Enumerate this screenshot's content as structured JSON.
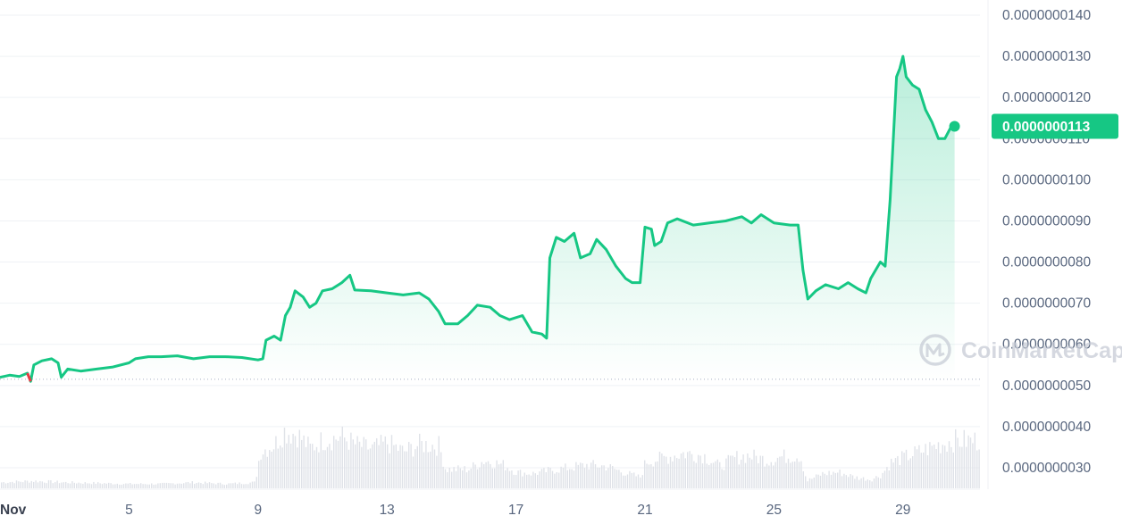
{
  "chart_data": {
    "type": "line",
    "x_axis": {
      "tick_labels": [
        "Nov",
        "5",
        "9",
        "13",
        "17",
        "21",
        "25",
        "29"
      ],
      "tick_days": [
        1,
        5,
        9,
        13,
        17,
        21,
        25,
        29
      ]
    },
    "y_axis": {
      "tick_labels": [
        "0.0000000030",
        "0.0000000040",
        "0.0000000050",
        "0.0000000060",
        "0.0000000070",
        "0.0000000080",
        "0.0000000090",
        "0.0000000100",
        "0.0000000110",
        "0.0000000120",
        "0.0000000130",
        "0.0000000140"
      ],
      "ylim": [
        2.8e-09,
        1.44e-08
      ]
    },
    "grid": "horizontal",
    "current_price_label": "0.0000000113",
    "current_price": 1.13e-08,
    "reference_line": 5.15e-09,
    "watermark": "CoinMarketCap",
    "colors": {
      "line_up": "#16c784",
      "line_down": "#ea3943",
      "volume": "#dfe2e8",
      "grid": "#eff2f5",
      "text": "#58667e"
    },
    "series": [
      {
        "values": [
          [
            1.0,
            5.2e-09
          ],
          [
            1.3,
            5.25e-09
          ],
          [
            1.6,
            5.22e-09
          ],
          [
            1.85,
            5.3e-09
          ],
          [
            1.95,
            5.1e-09
          ],
          [
            2.05,
            5.5e-09
          ],
          [
            2.3,
            5.6e-09
          ],
          [
            2.6,
            5.65e-09
          ],
          [
            2.8,
            5.55e-09
          ],
          [
            2.9,
            5.2e-09
          ],
          [
            3.1,
            5.4e-09
          ],
          [
            3.5,
            5.35e-09
          ],
          [
            4.0,
            5.4e-09
          ],
          [
            4.5,
            5.45e-09
          ],
          [
            5.0,
            5.55e-09
          ],
          [
            5.2,
            5.65e-09
          ],
          [
            5.6,
            5.7e-09
          ],
          [
            6.0,
            5.7e-09
          ],
          [
            6.5,
            5.72e-09
          ],
          [
            7.0,
            5.65e-09
          ],
          [
            7.5,
            5.7e-09
          ],
          [
            8.0,
            5.7e-09
          ],
          [
            8.5,
            5.68e-09
          ],
          [
            9.0,
            5.62e-09
          ],
          [
            9.15,
            5.65e-09
          ],
          [
            9.25,
            6.1e-09
          ],
          [
            9.5,
            6.2e-09
          ],
          [
            9.7,
            6.1e-09
          ],
          [
            9.85,
            6.7e-09
          ],
          [
            10.0,
            6.9e-09
          ],
          [
            10.15,
            7.3e-09
          ],
          [
            10.4,
            7.15e-09
          ],
          [
            10.6,
            6.9e-09
          ],
          [
            10.8,
            7e-09
          ],
          [
            11.0,
            7.3e-09
          ],
          [
            11.3,
            7.35e-09
          ],
          [
            11.6,
            7.5e-09
          ],
          [
            11.85,
            7.68e-09
          ],
          [
            12.0,
            7.32e-09
          ],
          [
            12.5,
            7.3e-09
          ],
          [
            13.0,
            7.25e-09
          ],
          [
            13.5,
            7.2e-09
          ],
          [
            14.0,
            7.25e-09
          ],
          [
            14.3,
            7.1e-09
          ],
          [
            14.6,
            6.8e-09
          ],
          [
            14.8,
            6.5e-09
          ],
          [
            15.2,
            6.5e-09
          ],
          [
            15.5,
            6.7e-09
          ],
          [
            15.8,
            6.95e-09
          ],
          [
            16.2,
            6.9e-09
          ],
          [
            16.5,
            6.7e-09
          ],
          [
            16.8,
            6.6e-09
          ],
          [
            17.2,
            6.7e-09
          ],
          [
            17.5,
            6.3e-09
          ],
          [
            17.8,
            6.25e-09
          ],
          [
            17.95,
            6.15e-09
          ],
          [
            18.05,
            8.1e-09
          ],
          [
            18.25,
            8.6e-09
          ],
          [
            18.5,
            8.5e-09
          ],
          [
            18.8,
            8.7e-09
          ],
          [
            19.0,
            8.1e-09
          ],
          [
            19.3,
            8.2e-09
          ],
          [
            19.5,
            8.55e-09
          ],
          [
            19.8,
            8.3e-09
          ],
          [
            20.1,
            7.9e-09
          ],
          [
            20.4,
            7.6e-09
          ],
          [
            20.6,
            7.5e-09
          ],
          [
            20.85,
            7.5e-09
          ],
          [
            21.0,
            8.85e-09
          ],
          [
            21.2,
            8.8e-09
          ],
          [
            21.3,
            8.4e-09
          ],
          [
            21.5,
            8.5e-09
          ],
          [
            21.7,
            8.95e-09
          ],
          [
            22.0,
            9.05e-09
          ],
          [
            22.5,
            8.9e-09
          ],
          [
            23.0,
            8.95e-09
          ],
          [
            23.5,
            9e-09
          ],
          [
            24.0,
            9.1e-09
          ],
          [
            24.3,
            8.95e-09
          ],
          [
            24.6,
            9.15e-09
          ],
          [
            25.0,
            8.95e-09
          ],
          [
            25.5,
            8.9e-09
          ],
          [
            25.75,
            8.9e-09
          ],
          [
            25.9,
            7.8e-09
          ],
          [
            26.05,
            7.1e-09
          ],
          [
            26.3,
            7.3e-09
          ],
          [
            26.6,
            7.45e-09
          ],
          [
            27.0,
            7.35e-09
          ],
          [
            27.3,
            7.5e-09
          ],
          [
            27.6,
            7.35e-09
          ],
          [
            27.85,
            7.25e-09
          ],
          [
            28.0,
            7.6e-09
          ],
          [
            28.3,
            8e-09
          ],
          [
            28.45,
            7.9e-09
          ],
          [
            28.6,
            9.5e-09
          ],
          [
            28.7,
            1.1e-08
          ],
          [
            28.8,
            1.25e-08
          ],
          [
            28.9,
            1.27e-08
          ],
          [
            29.0,
            1.3e-08
          ],
          [
            29.1,
            1.25e-08
          ],
          [
            29.3,
            1.23e-08
          ],
          [
            29.5,
            1.22e-08
          ],
          [
            29.7,
            1.17e-08
          ],
          [
            29.9,
            1.14e-08
          ],
          [
            30.1,
            1.1e-08
          ],
          [
            30.3,
            1.1e-08
          ],
          [
            30.5,
            1.13e-08
          ],
          [
            30.6,
            1.13e-08
          ]
        ]
      }
    ],
    "volume": {
      "values": [
        [
          1.0,
          0.08
        ],
        [
          1.5,
          0.09
        ],
        [
          2.0,
          0.1
        ],
        [
          3.0,
          0.08
        ],
        [
          4.0,
          0.07
        ],
        [
          5.0,
          0.06
        ],
        [
          6.0,
          0.06
        ],
        [
          7.0,
          0.08
        ],
        [
          8.0,
          0.06
        ],
        [
          8.9,
          0.08
        ],
        [
          9.05,
          0.5
        ],
        [
          9.5,
          0.6
        ],
        [
          9.8,
          0.78
        ],
        [
          10.2,
          0.74
        ],
        [
          10.6,
          0.55
        ],
        [
          11.0,
          0.66
        ],
        [
          11.6,
          0.7
        ],
        [
          12.0,
          0.6
        ],
        [
          12.5,
          0.54
        ],
        [
          13.0,
          0.62
        ],
        [
          13.5,
          0.5
        ],
        [
          14.0,
          0.6
        ],
        [
          14.6,
          0.58
        ],
        [
          14.8,
          0.26
        ],
        [
          15.5,
          0.26
        ],
        [
          16.0,
          0.38
        ],
        [
          16.6,
          0.32
        ],
        [
          17.0,
          0.22
        ],
        [
          17.5,
          0.2
        ],
        [
          18.0,
          0.24
        ],
        [
          18.6,
          0.28
        ],
        [
          19.2,
          0.32
        ],
        [
          19.8,
          0.3
        ],
        [
          20.3,
          0.22
        ],
        [
          20.85,
          0.15
        ],
        [
          21.0,
          0.36
        ],
        [
          21.6,
          0.42
        ],
        [
          22.2,
          0.48
        ],
        [
          22.8,
          0.45
        ],
        [
          23.3,
          0.3
        ],
        [
          23.8,
          0.42
        ],
        [
          24.2,
          0.45
        ],
        [
          24.8,
          0.38
        ],
        [
          25.2,
          0.43
        ],
        [
          25.8,
          0.45
        ],
        [
          26.0,
          0.1
        ],
        [
          26.5,
          0.2
        ],
        [
          27.0,
          0.22
        ],
        [
          27.5,
          0.15
        ],
        [
          28.0,
          0.12
        ],
        [
          28.3,
          0.18
        ],
        [
          28.6,
          0.35
        ],
        [
          29.0,
          0.42
        ],
        [
          29.5,
          0.5
        ],
        [
          30.0,
          0.58
        ],
        [
          30.5,
          0.65
        ],
        [
          30.6,
          0.65
        ]
      ]
    }
  }
}
